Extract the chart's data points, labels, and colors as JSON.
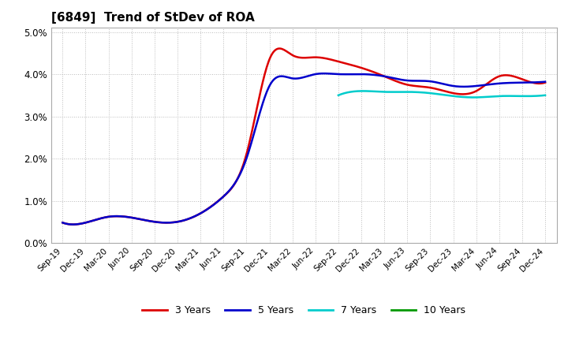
{
  "title": "[6849]  Trend of StDev of ROA",
  "title_fontsize": 11,
  "ylim": [
    0.0,
    0.051
  ],
  "yticks": [
    0.0,
    0.01,
    0.02,
    0.03,
    0.04,
    0.05
  ],
  "ytick_labels": [
    "0.0%",
    "1.0%",
    "2.0%",
    "3.0%",
    "4.0%",
    "5.0%"
  ],
  "background_color": "#ffffff",
  "plot_bg_color": "#ffffff",
  "grid_color": "#bbbbbb",
  "x_labels": [
    "Sep-19",
    "Dec-19",
    "Mar-20",
    "Jun-20",
    "Sep-20",
    "Dec-20",
    "Mar-21",
    "Jun-21",
    "Sep-21",
    "Dec-21",
    "Mar-22",
    "Jun-22",
    "Sep-22",
    "Dec-22",
    "Mar-23",
    "Jun-23",
    "Sep-23",
    "Dec-23",
    "Mar-24",
    "Jun-24",
    "Sep-24",
    "Dec-24"
  ],
  "series": {
    "3 Years": {
      "color": "#dd0000",
      "linewidth": 1.8,
      "values": [
        0.0048,
        0.0048,
        0.0062,
        0.006,
        0.005,
        0.005,
        0.007,
        0.011,
        0.021,
        0.0435,
        0.0445,
        0.044,
        0.043,
        0.0415,
        0.0395,
        0.0375,
        0.0368,
        0.0355,
        0.036,
        0.0395,
        0.0388,
        0.038
      ]
    },
    "5 Years": {
      "color": "#0000cc",
      "linewidth": 1.8,
      "values": [
        0.0048,
        0.0048,
        0.0062,
        0.006,
        0.005,
        0.005,
        0.007,
        0.011,
        0.02,
        0.0372,
        0.039,
        0.04,
        0.04,
        0.04,
        0.0395,
        0.0385,
        0.0383,
        0.0372,
        0.0372,
        0.0378,
        0.038,
        0.0382
      ]
    },
    "7 Years": {
      "color": "#00cccc",
      "linewidth": 1.8,
      "values": [
        null,
        null,
        null,
        null,
        null,
        null,
        null,
        null,
        null,
        null,
        null,
        null,
        0.035,
        0.036,
        0.0358,
        0.0358,
        0.0355,
        0.0348,
        0.0345,
        0.0348,
        0.0348,
        0.035
      ]
    },
    "10 Years": {
      "color": "#009900",
      "linewidth": 1.8,
      "values": [
        null,
        null,
        null,
        null,
        null,
        null,
        null,
        null,
        null,
        null,
        null,
        null,
        null,
        null,
        null,
        null,
        null,
        null,
        null,
        null,
        null,
        null
      ]
    }
  },
  "legend": {
    "entries": [
      "3 Years",
      "5 Years",
      "7 Years",
      "10 Years"
    ],
    "colors": [
      "#dd0000",
      "#0000cc",
      "#00cccc",
      "#009900"
    ],
    "ncol": 4,
    "fontsize": 9
  }
}
